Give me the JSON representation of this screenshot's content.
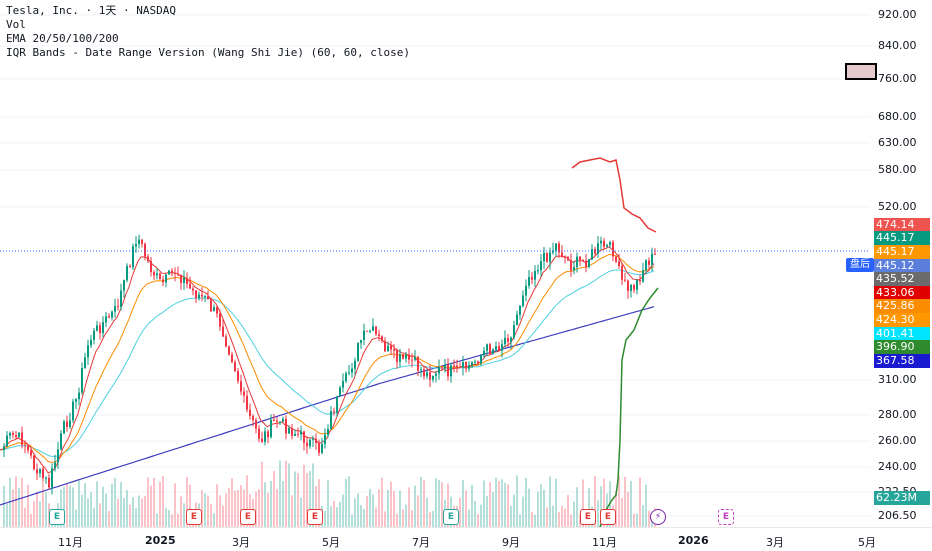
{
  "legend": {
    "symbol_line": "Tesla, Inc. · 1天 · NASDAQ",
    "vol": "Vol",
    "ema": "EMA 20/50/100/200",
    "iqr": "IQR Bands - Date Range Version (Wang Shi Jie) (60, 60, close)"
  },
  "price_axis": {
    "labels": [
      "920.00",
      "840.00",
      "760.00",
      "680.00",
      "630.00",
      "580.00",
      "520.00",
      "310.00",
      "280.00",
      "260.00",
      "240.00",
      "222.50",
      "206.50"
    ]
  },
  "badges": [
    {
      "value": "474.14",
      "color": "#ef5350"
    },
    {
      "value": "445.17",
      "color": "#089981"
    },
    {
      "value": "445.17",
      "color": "#ff9800"
    },
    {
      "value": "445.12",
      "color": "#5b7fdb"
    },
    {
      "value": "435.52",
      "color": "#6b6b6b"
    },
    {
      "value": "433.06",
      "color": "#e00000"
    },
    {
      "value": "425.86",
      "color": "#fb8c00"
    },
    {
      "value": "424.30",
      "color": "#ff9800"
    },
    {
      "value": "401.41",
      "color": "#00e5ff"
    },
    {
      "value": "396.90",
      "color": "#2e8b2e"
    },
    {
      "value": "367.58",
      "color": "#1a1ad0"
    },
    {
      "value": "62.23M",
      "color": "#26a69a"
    }
  ],
  "postmarket_label": "盘后",
  "time_axis": {
    "labels": [
      "11月",
      "2025",
      "3月",
      "5月",
      "7月",
      "9月",
      "11月",
      "2026",
      "3月",
      "5月"
    ]
  },
  "events": [
    {
      "type": "e",
      "glyph": "E"
    },
    {
      "type": "r",
      "glyph": "E"
    },
    {
      "type": "r",
      "glyph": "E"
    },
    {
      "type": "r",
      "glyph": "E"
    },
    {
      "type": "e",
      "glyph": "E"
    },
    {
      "type": "r",
      "glyph": "E"
    },
    {
      "type": "r",
      "glyph": "E"
    },
    {
      "type": "div",
      "glyph": "⚡"
    },
    {
      "type": "p",
      "glyph": "E"
    }
  ],
  "colors": {
    "up": "#089981",
    "down": "#f23645",
    "ema20": "#e53935",
    "ema50": "#fb8c00",
    "ema100": "#4dd0e1",
    "ema200": "#3f3fbf",
    "iqr_upper": "#e53935",
    "iqr_lower": "#2e8b2e"
  }
}
